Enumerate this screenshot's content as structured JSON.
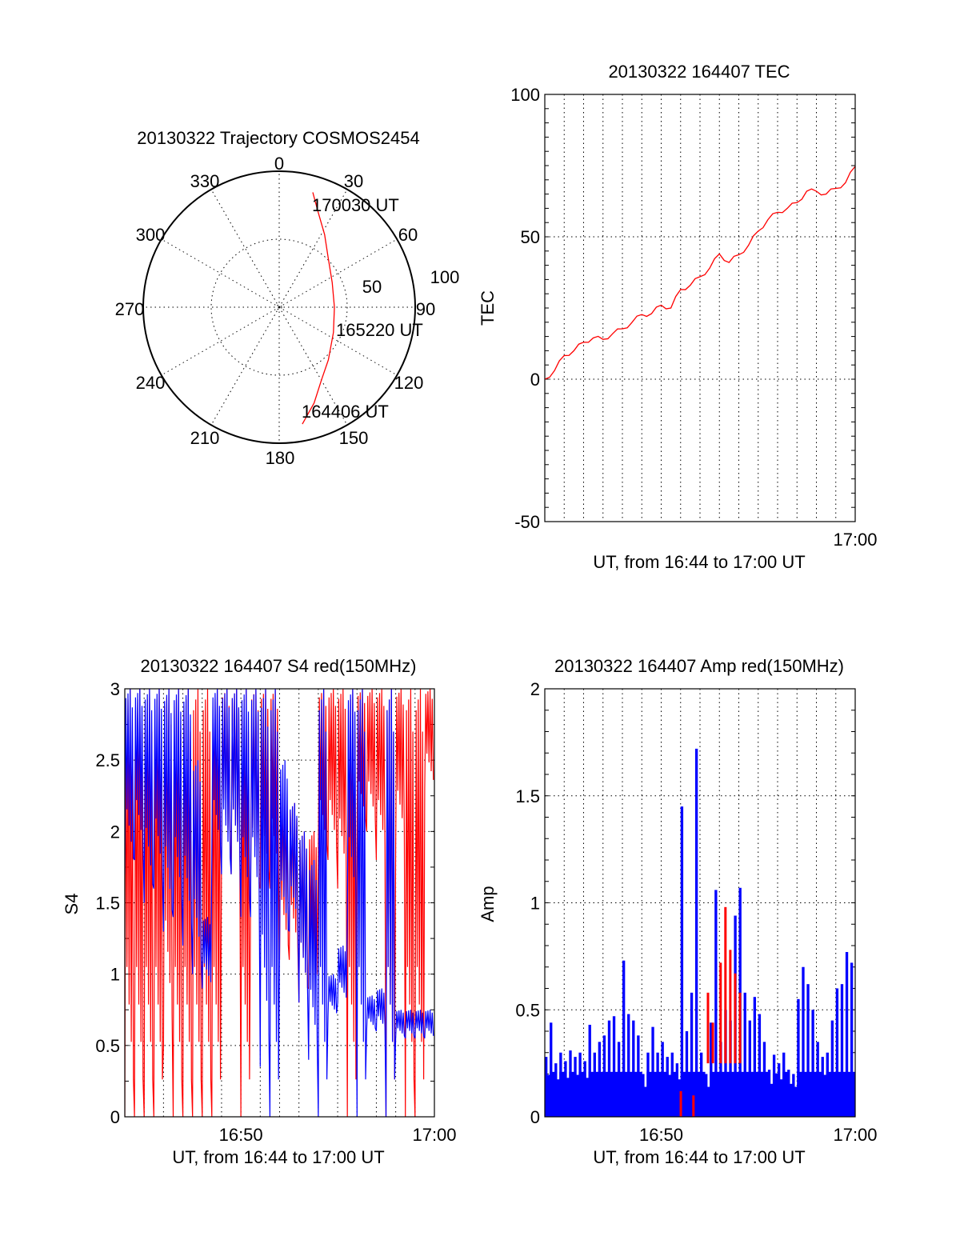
{
  "chart_data": [
    {
      "type": "polar",
      "title": "20130322 Trajectory COSMOS2454",
      "angle_labels": [
        "0",
        "30",
        "60",
        "90",
        "120",
        "150",
        "180",
        "210",
        "240",
        "270",
        "300",
        "330"
      ],
      "radial_labels": [
        "50",
        "100"
      ],
      "rlim": [
        0,
        100
      ],
      "series_color": "#ff0000",
      "trajectory": [
        {
          "az": 168.8,
          "r": 87.6
        },
        {
          "az": 160,
          "r": 75
        },
        {
          "az": 150,
          "r": 62
        },
        {
          "az": 137,
          "r": 53
        },
        {
          "az": 115,
          "r": 44
        },
        {
          "az": 90,
          "r": 40.6
        },
        {
          "az": 65,
          "r": 43
        },
        {
          "az": 45,
          "r": 51
        },
        {
          "az": 32,
          "r": 63
        },
        {
          "az": 22,
          "r": 76
        },
        {
          "az": 16.3,
          "r": 88
        }
      ],
      "annotations": [
        "164406 UT",
        "165220 UT",
        "170030 UT"
      ]
    },
    {
      "type": "line",
      "title": "20130322 164407 TEC",
      "ylabel": "TEC",
      "xlabel": "UT, from 16:44 to 17:00 UT",
      "xlim_minutes_from_1644": [
        0,
        16
      ],
      "ylim": [
        -50,
        100
      ],
      "yticks": [
        "-50",
        "0",
        "50",
        "100"
      ],
      "xticks": [
        {
          "t": 16,
          "label": "17:00"
        }
      ],
      "color": "#ff0000",
      "x": [
        0,
        0.5,
        1,
        1.5,
        2,
        2.5,
        3,
        3.5,
        4,
        4.5,
        5,
        5.5,
        6,
        6.5,
        7,
        7.5,
        8,
        8.5,
        9,
        9.5,
        10,
        10.5,
        11,
        11.5,
        12,
        12.5,
        13,
        13.5,
        14,
        14.5,
        15,
        15.5,
        16
      ],
      "y": [
        0,
        3,
        8.3,
        10,
        13,
        14.5,
        14,
        16,
        17.7,
        20,
        22.7,
        23,
        26,
        25,
        31.5,
        33,
        36,
        39,
        44,
        41,
        43.7,
        47,
        52,
        56,
        58.6,
        60,
        62,
        66,
        66,
        65,
        67,
        69,
        74.7
      ]
    },
    {
      "type": "line",
      "title": "20130322 164407 S4 red(150MHz)",
      "ylabel": "S4",
      "xlabel": "UT, from 16:44 to 17:00 UT",
      "xlim_minutes_from_1644": [
        0,
        16
      ],
      "ylim": [
        0,
        3
      ],
      "yticks": [
        "0",
        "0.5",
        "1",
        "1.5",
        "2",
        "2.5",
        "3"
      ],
      "xticks": [
        {
          "t": 6,
          "label": "16:50"
        },
        {
          "t": 16,
          "label": "17:00"
        }
      ],
      "series": [
        {
          "name": "red",
          "color": "#ff0000",
          "segments_t_low_high": [
            [
              0,
              0,
              3
            ],
            [
              0.5,
              0,
              3
            ],
            [
              1,
              0,
              3
            ],
            [
              1.5,
              0,
              3
            ],
            [
              2,
              0.5,
              3
            ],
            [
              2.5,
              0,
              3
            ],
            [
              3,
              0,
              3
            ],
            [
              3.5,
              0,
              3
            ],
            [
              4,
              0,
              3
            ],
            [
              4.5,
              0,
              3
            ],
            [
              5,
              1.8,
              3
            ],
            [
              5.5,
              1.7,
              3
            ],
            [
              6,
              0,
              3
            ],
            [
              6.5,
              1.5,
              3
            ],
            [
              7,
              1.6,
              3
            ],
            [
              7.5,
              1.6,
              3
            ],
            [
              8,
              1.1,
              2.3
            ],
            [
              8.5,
              1.1,
              2.2
            ],
            [
              9,
              0.8,
              2.0
            ],
            [
              9.5,
              0.9,
              2.0
            ],
            [
              10,
              1.8,
              3
            ],
            [
              10.5,
              1.8,
              3
            ],
            [
              11,
              1.6,
              3
            ],
            [
              11.5,
              0,
              3
            ],
            [
              12,
              2.0,
              3
            ],
            [
              12.5,
              2.0,
              3
            ],
            [
              13,
              1.8,
              3
            ],
            [
              13.5,
              0,
              3
            ],
            [
              14,
              1.9,
              3
            ],
            [
              14.5,
              0,
              3
            ],
            [
              15,
              0,
              3
            ],
            [
              15.5,
              2.3,
              3
            ]
          ]
        },
        {
          "name": "blue",
          "color": "#0000ff",
          "segments_t_low_high": [
            [
              0,
              1.7,
              3
            ],
            [
              0.5,
              1.8,
              3
            ],
            [
              1,
              1.5,
              3
            ],
            [
              1.5,
              1.6,
              3
            ],
            [
              2,
              1.3,
              3
            ],
            [
              2.5,
              1.4,
              3
            ],
            [
              3,
              1.2,
              3
            ],
            [
              3.5,
              1.0,
              2.5
            ],
            [
              4,
              0.9,
              1.4
            ],
            [
              4.5,
              1.8,
              3
            ],
            [
              5,
              1.7,
              3
            ],
            [
              5.5,
              1.7,
              3
            ],
            [
              6,
              1.4,
              3
            ],
            [
              6.5,
              1.4,
              3
            ],
            [
              7,
              0.35,
              3
            ],
            [
              7.5,
              0,
              3
            ],
            [
              8,
              1.2,
              2.5
            ],
            [
              8.5,
              1.3,
              2.2
            ],
            [
              9,
              0.8,
              2.0
            ],
            [
              9.5,
              0.4,
              1.8
            ],
            [
              10,
              0,
              3
            ],
            [
              10.5,
              0.7,
              1.0
            ],
            [
              11,
              0.8,
              1.2
            ],
            [
              11.5,
              1.4,
              3
            ],
            [
              12,
              0,
              3
            ],
            [
              12.5,
              0.6,
              0.85
            ],
            [
              13,
              0.6,
              0.9
            ],
            [
              13.5,
              0,
              3
            ],
            [
              14,
              0.55,
              0.75
            ],
            [
              14.5,
              0.55,
              0.75
            ],
            [
              15,
              0.55,
              0.75
            ],
            [
              15.5,
              0.55,
              0.75
            ]
          ]
        }
      ]
    },
    {
      "type": "bar",
      "title": "20130322 164407 Amp red(150MHz)",
      "ylabel": "Amp",
      "xlabel": "UT, from 16:44 to 17:00 UT",
      "xlim_minutes_from_1644": [
        0,
        16
      ],
      "ylim": [
        0,
        2
      ],
      "yticks": [
        "0",
        "0.5",
        "1",
        "1.5",
        "2"
      ],
      "xticks": [
        {
          "t": 6,
          "label": "16:50"
        },
        {
          "t": 16,
          "label": "17:00"
        }
      ],
      "series": [
        {
          "name": "blue",
          "color": "#0000ff",
          "dt": 0.25,
          "values": [
            0.28,
            0.44,
            0.25,
            0.3,
            0.26,
            0.31,
            0.28,
            0.3,
            0.26,
            0.43,
            0.3,
            0.35,
            0.38,
            0.45,
            0.47,
            0.35,
            0.73,
            0.48,
            0.45,
            0.38,
            0.2,
            0.3,
            0.42,
            0.3,
            0.35,
            0.28,
            0.3,
            0.25,
            1.45,
            0.4,
            0.58,
            1.72,
            0.3,
            0.2,
            0.44,
            1.06,
            0.35,
            0.5,
            0.45,
            0.94,
            1.07,
            0.58,
            0.45,
            0.56,
            0.48,
            0.35,
            0.22,
            0.29,
            0.25,
            0.3,
            0.22,
            0.2,
            0.55,
            0.7,
            0.62,
            0.5,
            0.35,
            0.28,
            0.3,
            0.45,
            0.6,
            0.62,
            0.77,
            0.72
          ]
        },
        {
          "name": "red",
          "color": "#ff0000",
          "points": [
            {
              "t": 6.95,
              "v": 0.12
            },
            {
              "t": 7.6,
              "v": 0.1
            },
            {
              "t": 8.35,
              "v": 0.58
            },
            {
              "t": 8.6,
              "v": 0.44
            },
            {
              "t": 9.0,
              "v": 0.72
            },
            {
              "t": 9.25,
              "v": 0.98
            },
            {
              "t": 9.5,
              "v": 0.78
            },
            {
              "t": 9.75,
              "v": 0.67
            },
            {
              "t": 10.0,
              "v": 0.58
            }
          ]
        }
      ]
    }
  ]
}
